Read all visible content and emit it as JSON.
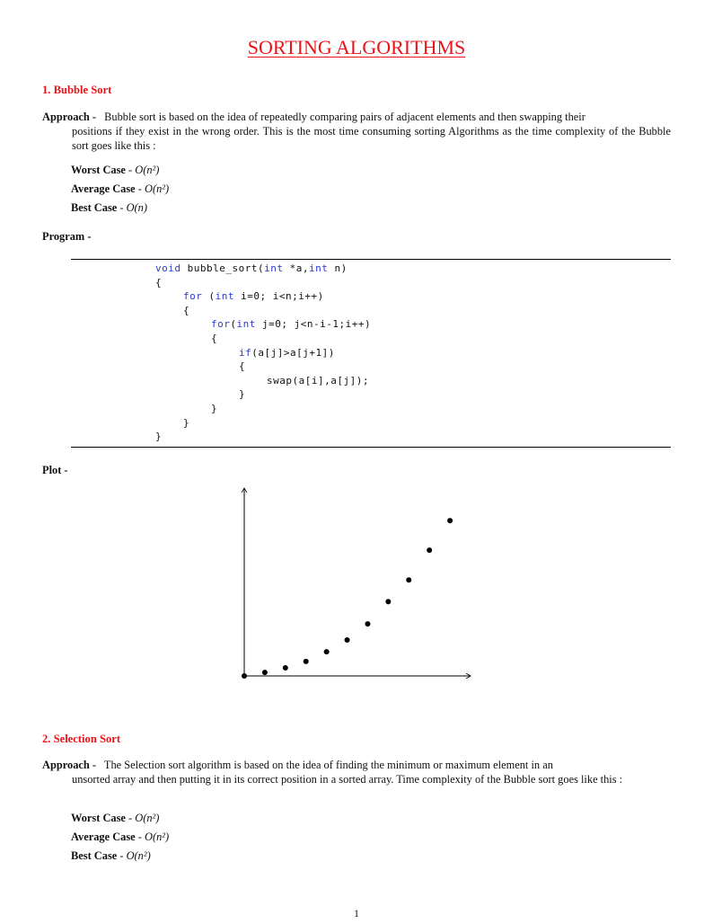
{
  "title": "SORTING ALGORITHMS",
  "sections": [
    {
      "heading": "1. Bubble Sort",
      "approach_label": "Approach -",
      "approach_first": "Bubble sort is based on the idea of repeatedly comparing pairs of adjacent elements and then swapping their",
      "approach_rest": "positions if they exist in the wrong order. This is the most time consuming sorting Algorithms as the time complexity of the Bubble sort goes like this :",
      "cases": [
        {
          "label": "Worst Case",
          "sep": " - ",
          "value": "O(n²)"
        },
        {
          "label": "Average Case",
          "sep": " - ",
          "value": "O(n²)"
        },
        {
          "label": "Best Case",
          "sep": " - ",
          "value": "O(n)"
        }
      ],
      "program_label": "Program -",
      "code": [
        {
          "indent": 0,
          "kw": "void",
          "text": " bubble_sort(",
          "kw2": "int",
          "text2": " *a,",
          "kw3": "int",
          "text3": " n)"
        },
        {
          "indent": 0,
          "text": "{"
        },
        {
          "indent": 1,
          "kw": "for",
          "text": " (",
          "kw2": "int",
          "text2": " i=0; i<n;i++)"
        },
        {
          "indent": 1,
          "text": "{"
        },
        {
          "indent": 2,
          "kw": "for",
          "text": "(",
          "kw2": "int",
          "text2": " j=0; j<n-i-1;i++)"
        },
        {
          "indent": 2,
          "text": "{"
        },
        {
          "indent": 3,
          "kw": "if",
          "text": "(a[j]>a[j+1])"
        },
        {
          "indent": 3,
          "text": "{"
        },
        {
          "indent": 4,
          "text": "swap(a[i],a[j]);"
        },
        {
          "indent": 3,
          "text": "}"
        },
        {
          "indent": 2,
          "text": "}"
        },
        {
          "indent": 1,
          "text": "}"
        },
        {
          "indent": 0,
          "text": "}"
        }
      ],
      "plot_label": "Plot -"
    },
    {
      "heading": "2. Selection Sort",
      "approach_label": "Approach -",
      "approach_first": "The Selection sort algorithm is based on the idea of finding the minimum or maximum element in an",
      "approach_rest": "unsorted array and then putting it in its correct position in a sorted array. Time complexity of the Bubble sort goes like this :",
      "cases": [
        {
          "label": "Worst Case",
          "sep": " - ",
          "value": "O(n²)"
        },
        {
          "label": "Average Case",
          "sep": " - ",
          "value": "O(n²)"
        },
        {
          "label": "Best Case",
          "sep": " - ",
          "value": "O(n²)"
        }
      ]
    }
  ],
  "chart_data": {
    "type": "scatter",
    "x": [
      0,
      1,
      2,
      3,
      4,
      5,
      6,
      7,
      8,
      9,
      10
    ],
    "y": [
      0,
      0.17,
      0.39,
      0.7,
      1.17,
      1.74,
      2.52,
      3.6,
      4.65,
      6.09,
      7.52
    ],
    "xlim": [
      0,
      11
    ],
    "ylim": [
      0,
      9.1
    ],
    "grid": false,
    "axes_arrows": true,
    "marker_color": "#000000"
  },
  "page_number": "1",
  "colors": {
    "heading": "#e8141a",
    "keyword": "#2b3bd0"
  }
}
